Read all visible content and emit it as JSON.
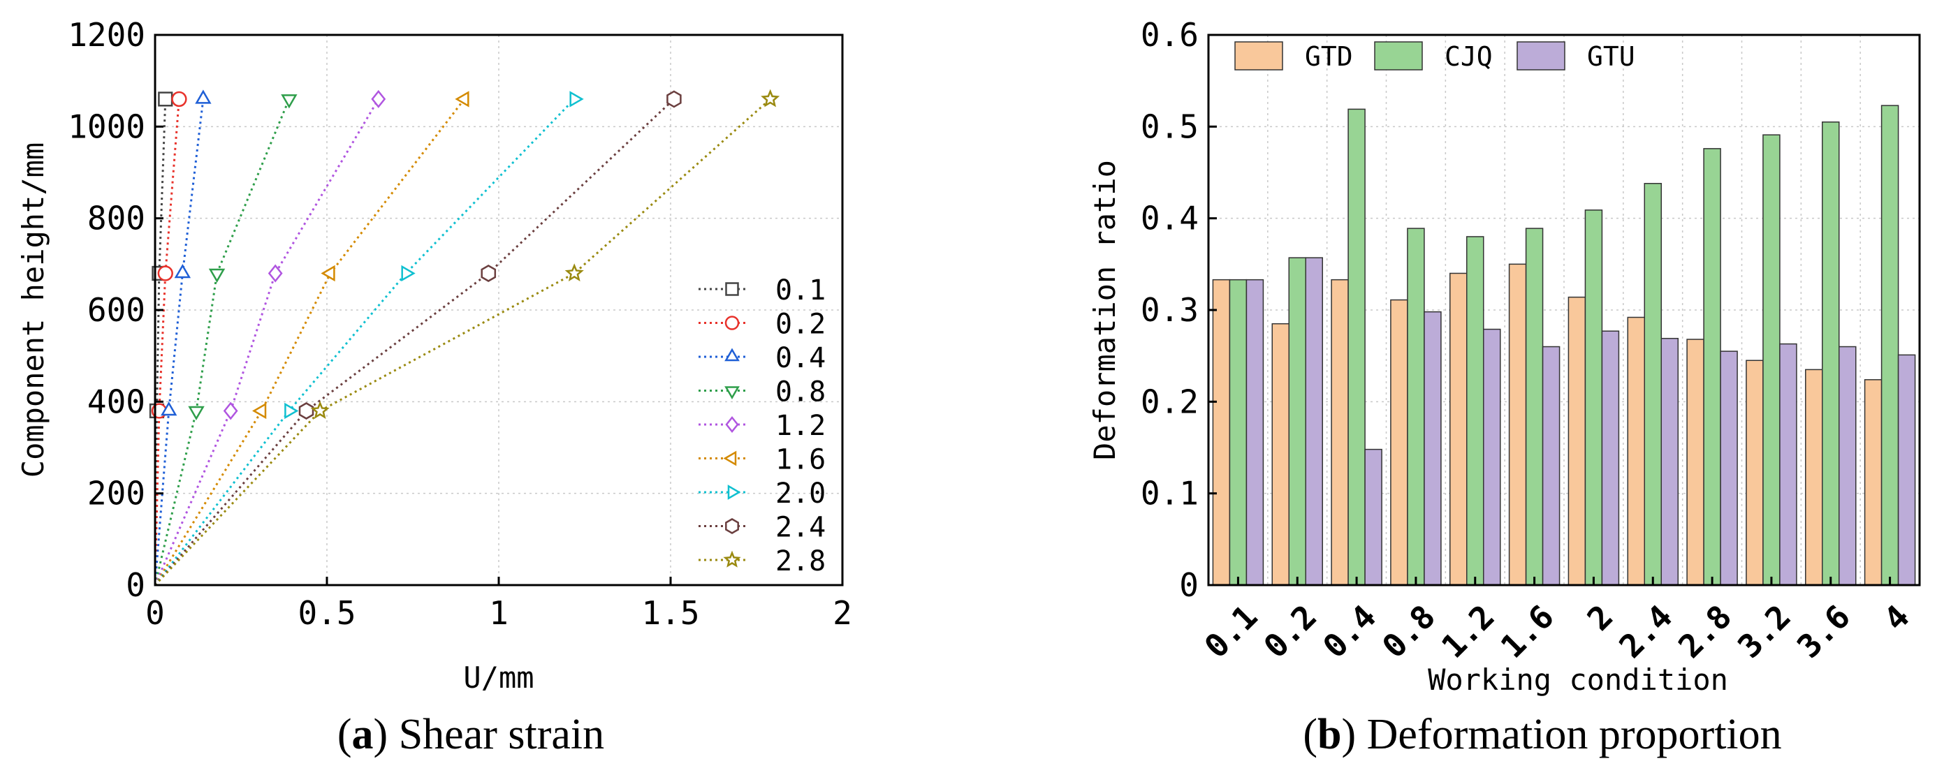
{
  "chart_data": [
    {
      "type": "line",
      "panel_id": "a",
      "caption": "Shear strain",
      "xlabel": "U/mm",
      "ylabel": "Component height/mm",
      "xlim": [
        0,
        2
      ],
      "ylim": [
        0,
        1200
      ],
      "x_ticks": [
        0,
        0.5,
        1,
        1.5,
        2
      ],
      "x_tick_labels": [
        "0",
        "0.5",
        "1",
        "1.5",
        "2"
      ],
      "y_ticks": [
        0,
        200,
        400,
        600,
        800,
        1000,
        1200
      ],
      "y_tick_labels": [
        "0",
        "200",
        "400",
        "600",
        "800",
        "1000",
        "1200"
      ],
      "grid": true,
      "legend_position": "right",
      "heights": [
        0,
        380,
        680,
        1060
      ],
      "series": [
        {
          "name": "0.1",
          "color": "#444444",
          "marker": "square",
          "x": [
            0,
            0.005,
            0.012,
            0.03
          ]
        },
        {
          "name": "0.2",
          "color": "#e8322b",
          "marker": "circle",
          "x": [
            0,
            0.012,
            0.03,
            0.07
          ]
        },
        {
          "name": "0.4",
          "color": "#1f5fd6",
          "marker": "triangle-up",
          "x": [
            0,
            0.04,
            0.08,
            0.14
          ]
        },
        {
          "name": "0.8",
          "color": "#2e9e4a",
          "marker": "triangle-down",
          "x": [
            0,
            0.12,
            0.18,
            0.39
          ]
        },
        {
          "name": "1.2",
          "color": "#b055e0",
          "marker": "diamond",
          "x": [
            0,
            0.22,
            0.35,
            0.65
          ]
        },
        {
          "name": "1.6",
          "color": "#d48a00",
          "marker": "triangle-left",
          "x": [
            0,
            0.31,
            0.51,
            0.9
          ]
        },
        {
          "name": "2.0",
          "color": "#10c0d0",
          "marker": "triangle-right",
          "x": [
            0,
            0.39,
            0.73,
            1.22
          ]
        },
        {
          "name": "2.4",
          "color": "#6b3f3f",
          "marker": "hexagon",
          "x": [
            0,
            0.44,
            0.97,
            1.51
          ]
        },
        {
          "name": "2.8",
          "color": "#9a8a10",
          "marker": "star",
          "x": [
            0,
            0.48,
            1.22,
            1.79
          ]
        }
      ]
    },
    {
      "type": "bar",
      "panel_id": "b",
      "caption": "Deformation proportion",
      "xlabel": "Working condition",
      "ylabel": "Deformation ratio",
      "ylim": [
        0,
        0.6
      ],
      "y_ticks": [
        0,
        0.1,
        0.2,
        0.3,
        0.4,
        0.5,
        0.6
      ],
      "y_tick_labels": [
        "0",
        "0.1",
        "0.2",
        "0.3",
        "0.4",
        "0.5",
        "0.6"
      ],
      "grid": true,
      "legend_position": "top-left",
      "categories": [
        "0.1",
        "0.2",
        "0.4",
        "0.8",
        "1.2",
        "1.6",
        "2",
        "2.4",
        "2.8",
        "3.2",
        "3.6",
        "4"
      ],
      "series": [
        {
          "name": "GTD",
          "color": "#f9c89b",
          "values": [
            0.333,
            0.285,
            0.333,
            0.311,
            0.34,
            0.35,
            0.314,
            0.292,
            0.268,
            0.245,
            0.235,
            0.224
          ]
        },
        {
          "name": "CJQ",
          "color": "#98d494",
          "values": [
            0.333,
            0.357,
            0.519,
            0.389,
            0.38,
            0.389,
            0.409,
            0.438,
            0.476,
            0.491,
            0.505,
            0.523
          ]
        },
        {
          "name": "GTU",
          "color": "#bcacd8",
          "values": [
            0.333,
            0.357,
            0.148,
            0.298,
            0.279,
            0.26,
            0.277,
            0.269,
            0.255,
            0.263,
            0.26,
            0.251
          ]
        }
      ]
    }
  ]
}
